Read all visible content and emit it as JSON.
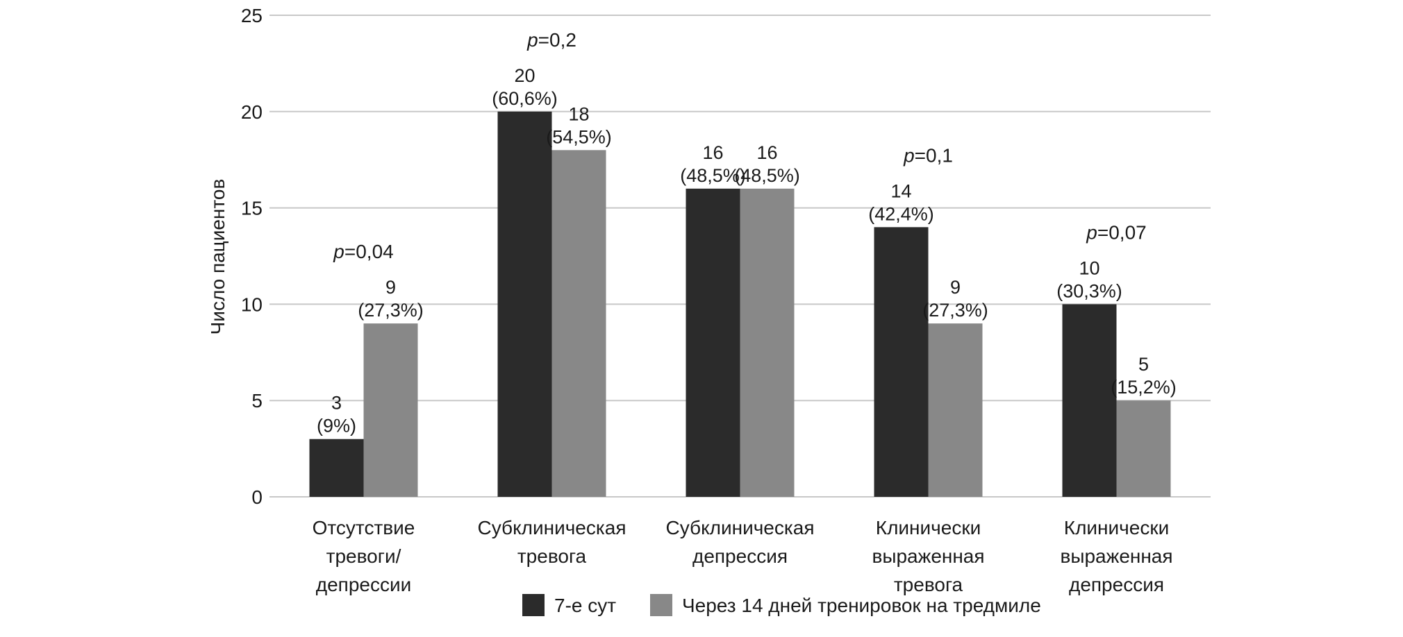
{
  "chart_data": {
    "type": "bar",
    "title": "",
    "xlabel": "",
    "ylabel": "Число пациентов",
    "ylim": [
      0,
      25
    ],
    "yticks": [
      0,
      5,
      10,
      15,
      20,
      25
    ],
    "grid": true,
    "legend_position": "bottom",
    "categories": [
      [
        "Отсутствие",
        "тревоги/",
        "депрессии"
      ],
      [
        "Субклиническая",
        "тревога"
      ],
      [
        "Субклиническая",
        "депрессия"
      ],
      [
        "Клинически",
        "выраженная",
        "тревога"
      ],
      [
        "Клинически",
        "выраженная",
        "депрессия"
      ]
    ],
    "series": [
      {
        "name": "7-е сут",
        "color": "#2b2b2b",
        "values": [
          3,
          20,
          16,
          14,
          10
        ],
        "labels": [
          [
            "3",
            "(9%)"
          ],
          [
            "20",
            "(60,6%)"
          ],
          [
            "16",
            "(48,5%)"
          ],
          [
            "14",
            "(42,4%)"
          ],
          [
            "10",
            "(30,3%)"
          ]
        ]
      },
      {
        "name": "Через 14 дней тренировок на тредмиле",
        "color": "#888888",
        "values": [
          9,
          18,
          16,
          9,
          5
        ],
        "labels": [
          [
            "9",
            "(27,3%)"
          ],
          [
            "18",
            "(54,5%)"
          ],
          [
            "16",
            "(48,5%)"
          ],
          [
            "9",
            "(27,3%)"
          ],
          [
            "5",
            "(15,2%)"
          ]
        ]
      }
    ],
    "annotations": [
      {
        "category_index": 0,
        "italic": "p",
        "text": "=0,04"
      },
      {
        "category_index": 1,
        "italic": "p",
        "text": "=0,2"
      },
      {
        "category_index": 2,
        "italic": "",
        "text": ""
      },
      {
        "category_index": 3,
        "italic": "p",
        "text": "=0,1"
      },
      {
        "category_index": 4,
        "italic": "p",
        "text": "=0,07"
      }
    ]
  }
}
